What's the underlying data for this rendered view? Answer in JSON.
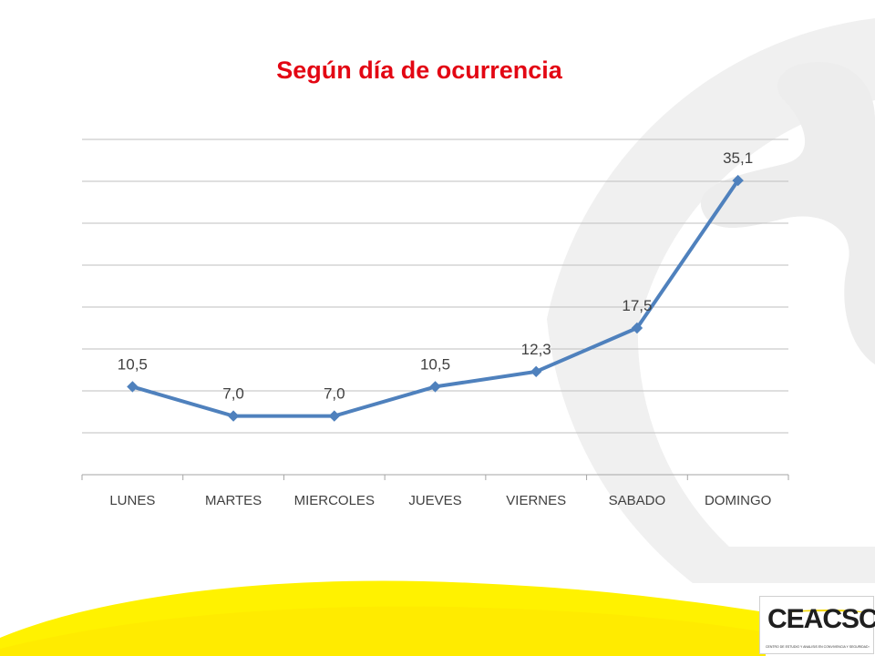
{
  "slide": {
    "title": "Según día de ocurrencia",
    "logo_text": "CEACSC",
    "logo_subtitle": "CENTRO DE ESTUDIO Y ANALISIS EN CONVIVENCIA Y SEGURIDAD CIUDADANA",
    "colors": {
      "title": "#e30613",
      "series": "#4f81bd",
      "background_swirl": "#efefef",
      "yellow_band": "#fff200"
    }
  },
  "chart_data": {
    "type": "line",
    "title": "Según día de ocurrencia",
    "categories": [
      "LUNES",
      "MARTES",
      "MIERCOLES",
      "JUEVES",
      "VIERNES",
      "SABADO",
      "DOMINGO"
    ],
    "series": [
      {
        "values": [
          10.5,
          7.0,
          7.0,
          10.5,
          12.3,
          17.5,
          35.1
        ]
      }
    ],
    "data_labels": [
      "10,5",
      "7,0",
      "7,0",
      "10,5",
      "12,3",
      "17,5",
      "35,1"
    ],
    "xlabel": "",
    "ylabel": "",
    "ylim": [
      0,
      40
    ],
    "grid": true,
    "legend": "none",
    "marker": "diamond"
  }
}
